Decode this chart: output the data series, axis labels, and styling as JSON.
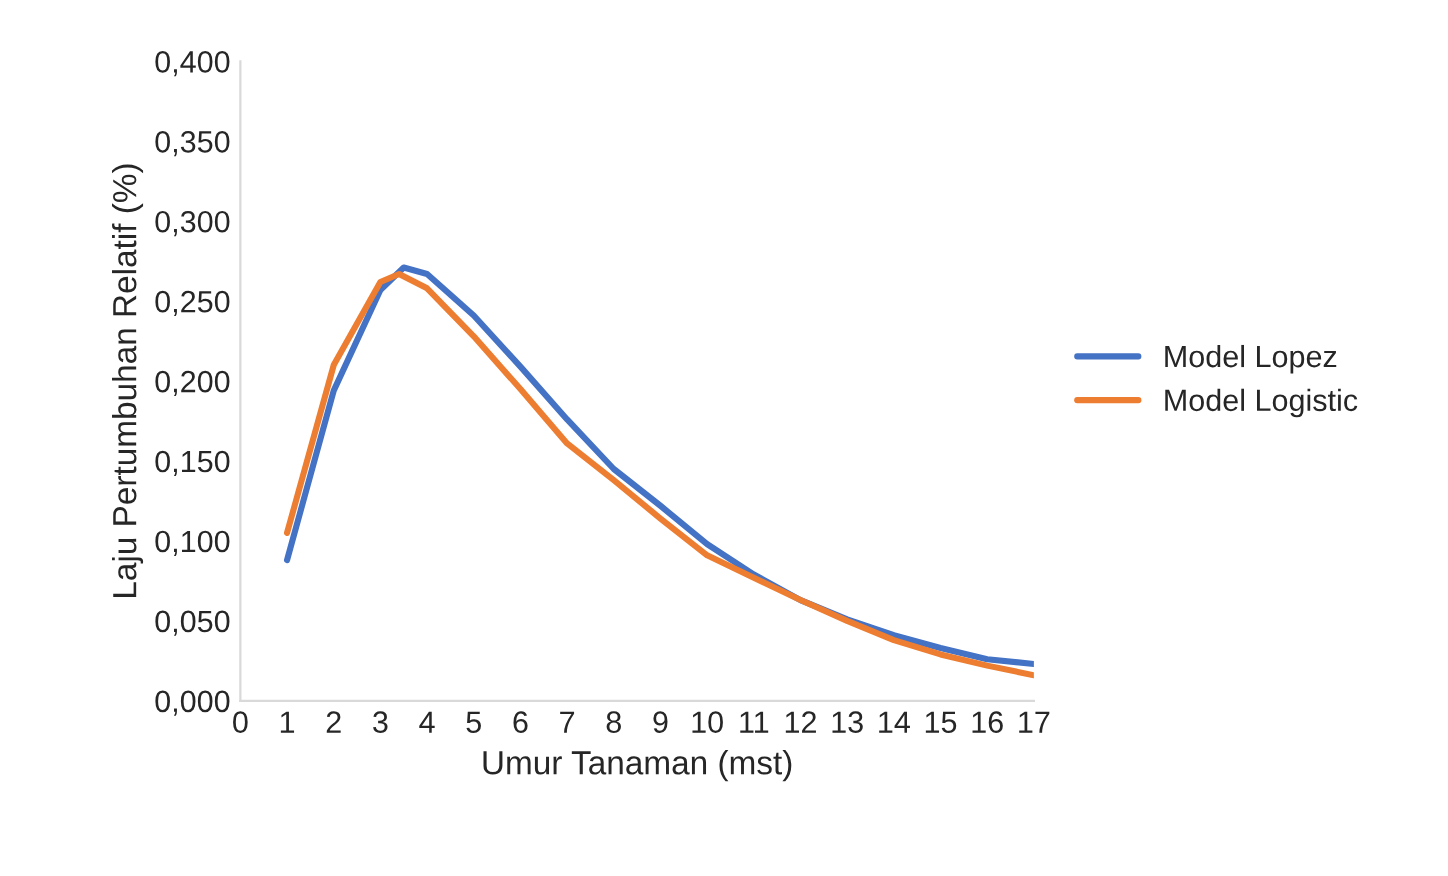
{
  "chart_data": {
    "type": "line",
    "xlabel": "Umur Tanaman (mst)",
    "ylabel": "Laju Pertumbuhan Relatif (%)",
    "series": [
      {
        "name": "Model Lopez",
        "color": "#4472c4",
        "x": [
          1,
          2,
          3,
          3.5,
          4,
          5,
          6,
          7,
          8,
          9,
          10,
          11,
          12,
          13,
          14,
          15,
          16,
          17
        ],
        "values": [
          0.088,
          0.194,
          0.257,
          0.271,
          0.267,
          0.241,
          0.209,
          0.176,
          0.145,
          0.122,
          0.098,
          0.079,
          0.063,
          0.051,
          0.041,
          0.033,
          0.026,
          0.023
        ]
      },
      {
        "name": "Model Logistic",
        "color": "#ed7d31",
        "x": [
          1,
          2,
          3,
          3.4,
          4,
          5,
          6,
          7,
          8,
          9,
          10,
          11,
          12,
          13,
          14,
          15,
          16,
          17
        ],
        "values": [
          0.105,
          0.21,
          0.262,
          0.267,
          0.258,
          0.228,
          0.195,
          0.161,
          0.138,
          0.114,
          0.091,
          0.077,
          0.063,
          0.05,
          0.038,
          0.029,
          0.022,
          0.016
        ]
      }
    ],
    "xlim": [
      0,
      17
    ],
    "xticks": [
      0,
      1,
      2,
      3,
      4,
      5,
      6,
      7,
      8,
      9,
      10,
      11,
      12,
      13,
      14,
      15,
      16,
      17
    ],
    "ylim": [
      0,
      0.4
    ],
    "yticks": [
      {
        "value": 0,
        "label": "0,000"
      },
      {
        "value": 0.05,
        "label": "0,050"
      },
      {
        "value": 0.1,
        "label": "0,100"
      },
      {
        "value": 0.15,
        "label": "0,150"
      },
      {
        "value": 0.2,
        "label": "0,200"
      },
      {
        "value": 0.25,
        "label": "0,250"
      },
      {
        "value": 0.3,
        "label": "0,300"
      },
      {
        "value": 0.35,
        "label": "0,350"
      },
      {
        "value": 0.4,
        "label": "0,400"
      }
    ],
    "grid": false,
    "legend": "right",
    "marker": "none",
    "line_style": "solid"
  }
}
